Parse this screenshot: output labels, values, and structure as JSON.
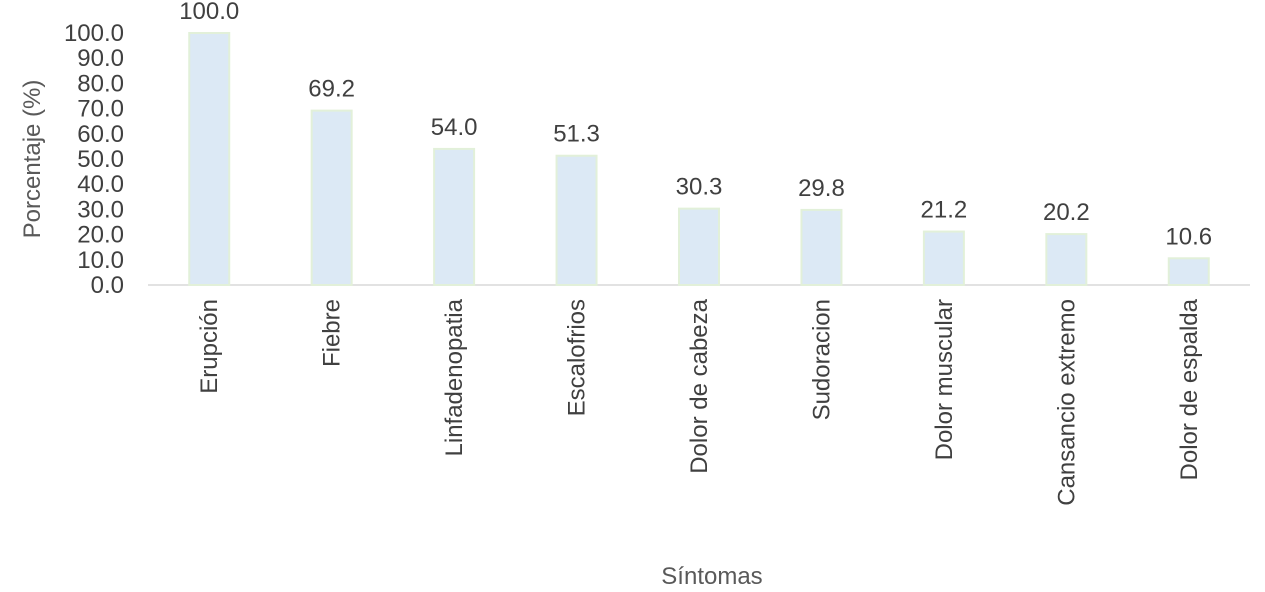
{
  "chart_data": {
    "type": "bar",
    "categories": [
      "Erupción",
      "Fiebre",
      "Linfadenopatia",
      "Escalofrios",
      "Dolor de cabeza",
      "Sudoracion",
      "Dolor muscular",
      "Cansancio extremo",
      "Dolor de espalda"
    ],
    "values": [
      100.0,
      69.2,
      54.0,
      51.3,
      30.3,
      29.8,
      21.2,
      20.2,
      10.6
    ],
    "xlabel": "Síntomas",
    "ylabel": "Porcentaje (%)",
    "ylim": [
      0,
      100
    ],
    "yticks": [
      "0.0",
      "10.0",
      "20.0",
      "30.0",
      "40.0",
      "50.0",
      "60.0",
      "70.0",
      "80.0",
      "90.0",
      "100.0"
    ],
    "grid": false,
    "legend": "none",
    "bar_fill_color": "#dce9f5",
    "bar_edge_color": "#e2f0d9",
    "text_color": "#404040"
  }
}
